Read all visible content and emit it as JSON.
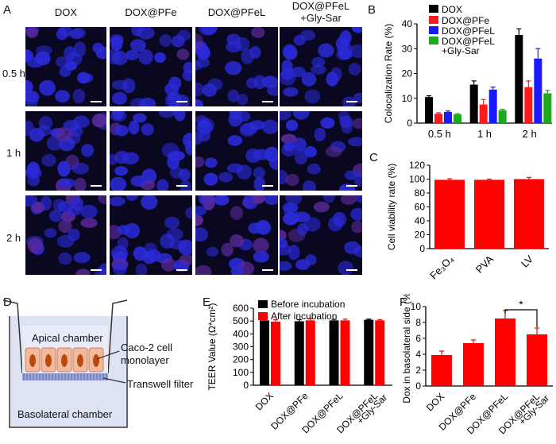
{
  "panels": {
    "A": "A",
    "B": "B",
    "C": "C",
    "D": "D",
    "E": "E",
    "F": "F"
  },
  "panelA": {
    "columns": [
      "DOX",
      "DOX@PFe",
      "DOX@PFeL",
      "DOX@PFeL\n+Gly-Sar"
    ],
    "rows": [
      "0.5 h",
      "1 h",
      "2 h"
    ]
  },
  "panelD": {
    "apical": "Apical chamber",
    "basolateral": "Basolateral chamber",
    "cells": "Caco-2 cell\nmonolayer",
    "filter": "Transwell filter"
  },
  "colors": {
    "dox": "#000000",
    "pfe": "#ff1a1a",
    "pfel": "#1a1aff",
    "glysar": "#1aaa1a",
    "red": "#ff0000"
  },
  "chart_data": [
    {
      "id": "B",
      "type": "bar",
      "ylabel": "Colocalization Rate (%)",
      "ylim": [
        0,
        40
      ],
      "yticks": [
        0,
        10,
        20,
        30,
        40
      ],
      "categories": [
        "0.5 h",
        "1 h",
        "2 h"
      ],
      "series": [
        {
          "name": "DOX",
          "values": [
            10.5,
            15.5,
            35.5
          ],
          "err": [
            0.5,
            1.5,
            2.5
          ]
        },
        {
          "name": "DOX@PFe",
          "values": [
            3.8,
            7.5,
            14.5
          ],
          "err": [
            0.4,
            2,
            2.5
          ]
        },
        {
          "name": "DOX@PFeL",
          "values": [
            4.5,
            13.5,
            26
          ],
          "err": [
            0.4,
            1,
            4
          ]
        },
        {
          "name": "DOX@PFeL\n+Gly-Sar",
          "values": [
            3.5,
            5.2,
            12
          ],
          "err": [
            0.3,
            0.4,
            1.2
          ]
        }
      ]
    },
    {
      "id": "C",
      "type": "bar",
      "ylabel": "Cell viability rate (%)",
      "ylim": [
        0,
        120
      ],
      "yticks": [
        0,
        20,
        40,
        60,
        80,
        100,
        120
      ],
      "categories": [
        "Fe3O4",
        "PVA",
        "LV"
      ],
      "values": [
        99,
        99,
        100
      ],
      "err": [
        1.5,
        1,
        2.5
      ]
    },
    {
      "id": "E",
      "type": "bar",
      "ylabel": "TEER Value (Ω*cm²)",
      "ylim": [
        0,
        600
      ],
      "yticks": [
        0,
        100,
        200,
        300,
        400,
        500,
        600
      ],
      "categories": [
        "DOX",
        "DOX@PFe",
        "DOX@PFeL",
        "DOX@PFeL\n+Gly-Sar"
      ],
      "series": [
        {
          "name": "Before incubation",
          "values": [
            505,
            498,
            505,
            510
          ],
          "err": [
            10,
            12,
            8,
            5
          ]
        },
        {
          "name": "After incubation",
          "values": [
            495,
            505,
            505,
            505
          ],
          "err": [
            15,
            15,
            10,
            5
          ]
        }
      ]
    },
    {
      "id": "F",
      "type": "bar",
      "ylabel": "Dox in basolateral side (%)",
      "ylim": [
        0,
        10
      ],
      "yticks": [
        0,
        2,
        4,
        6,
        8,
        10
      ],
      "categories": [
        "DOX",
        "DOX@PFe",
        "DOX@PFeL",
        "DOX@PFeL\n+Gly-Sar"
      ],
      "values": [
        3.9,
        5.4,
        8.5,
        6.5
      ],
      "err": [
        0.5,
        0.4,
        1.0,
        0.8
      ],
      "annotation": "*"
    }
  ]
}
